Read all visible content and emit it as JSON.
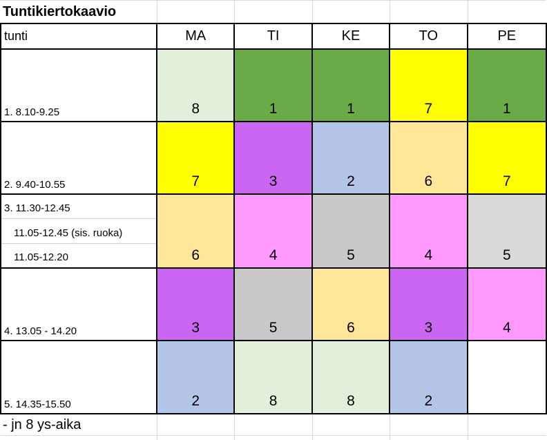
{
  "title": "Tuntikiertokaavio",
  "footer_note": "- jn 8 ys-aika",
  "colors": {
    "green": "#6BAB47",
    "light_green": "#E2EFDA",
    "yellow": "#FFFF00",
    "purple": "#CB66F3",
    "light_blue": "#B4C6E7",
    "tan": "#FFE699",
    "pink": "#FF99FF",
    "gray": "#C9C9C9",
    "light_gray": "#D9D9D9",
    "white": "#FFFFFF"
  },
  "header": {
    "corner": "tunti",
    "days": [
      "MA",
      "TI",
      "KE",
      "TO",
      "PE"
    ]
  },
  "rows": [
    {
      "labels": [
        "1. 8.10-9.25"
      ],
      "cells": [
        {
          "value": "8",
          "color": "light_green"
        },
        {
          "value": "1",
          "color": "green"
        },
        {
          "value": "1",
          "color": "green"
        },
        {
          "value": "7",
          "color": "yellow"
        },
        {
          "value": "1",
          "color": "green"
        }
      ]
    },
    {
      "labels": [
        "2. 9.40-10.55"
      ],
      "cells": [
        {
          "value": "7",
          "color": "yellow"
        },
        {
          "value": "3",
          "color": "purple"
        },
        {
          "value": "2",
          "color": "light_blue"
        },
        {
          "value": "6",
          "color": "tan"
        },
        {
          "value": "7",
          "color": "yellow"
        }
      ]
    },
    {
      "labels": [
        "3. 11.30-12.45",
        "11.05-12.45 (sis. ruoka)",
        "11.05-12.20"
      ],
      "cells": [
        {
          "value": "6",
          "color": "tan"
        },
        {
          "value": "4",
          "color": "pink"
        },
        {
          "value": "5",
          "color": "gray"
        },
        {
          "value": "4",
          "color": "pink"
        },
        {
          "value": "5",
          "color": "light_gray"
        }
      ]
    },
    {
      "labels": [
        "4. 13.05 - 14.20"
      ],
      "cells": [
        {
          "value": "3",
          "color": "purple"
        },
        {
          "value": "5",
          "color": "gray"
        },
        {
          "value": "6",
          "color": "tan"
        },
        {
          "value": "3",
          "color": "purple"
        },
        {
          "value": "4",
          "color": "pink"
        }
      ]
    },
    {
      "labels": [
        "5. 14.35-15.50"
      ],
      "cells": [
        {
          "value": "2",
          "color": "light_blue"
        },
        {
          "value": "8",
          "color": "light_green"
        },
        {
          "value": "8",
          "color": "light_green"
        },
        {
          "value": "2",
          "color": "light_blue"
        },
        {
          "value": "",
          "color": "white"
        }
      ]
    }
  ]
}
